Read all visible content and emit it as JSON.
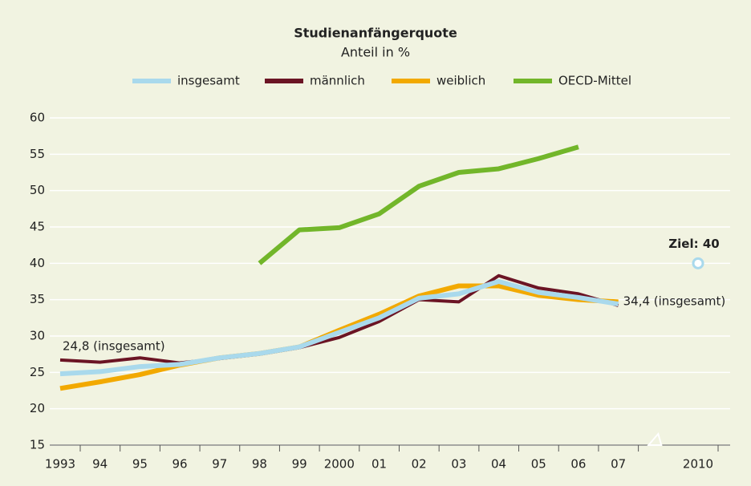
{
  "chart_data": {
    "type": "line",
    "title": "Studienanfängerquote",
    "subtitle": "Anteil in %",
    "categories": [
      "1993",
      "94",
      "95",
      "96",
      "97",
      "98",
      "99",
      "2000",
      "01",
      "02",
      "03",
      "04",
      "05",
      "06",
      "07",
      null,
      "2010"
    ],
    "series": [
      {
        "name": "insgesamt",
        "color": "#a9d9ec",
        "values": [
          24.8,
          25.1,
          25.8,
          26.1,
          27.0,
          27.6,
          28.5,
          30.5,
          32.5,
          35.2,
          35.8,
          37.5,
          36.0,
          35.3,
          34.4,
          null,
          null
        ]
      },
      {
        "name": "männlich",
        "color": "#6b1424",
        "values": [
          26.7,
          26.4,
          27.0,
          26.3,
          26.9,
          27.5,
          28.4,
          29.8,
          32.0,
          35.0,
          34.7,
          38.3,
          36.6,
          35.8,
          34.2,
          null,
          null
        ]
      },
      {
        "name": "weiblich",
        "color": "#f2a900",
        "values": [
          22.8,
          23.7,
          24.7,
          26.0,
          27.0,
          27.6,
          28.5,
          30.8,
          33.0,
          35.5,
          36.9,
          36.9,
          35.6,
          35.0,
          34.7,
          null,
          null
        ]
      },
      {
        "name": "OECD-Mittel",
        "color": "#72b62a",
        "values": [
          null,
          null,
          null,
          null,
          null,
          40,
          44.6,
          44.9,
          46.8,
          50.6,
          52.5,
          53.0,
          54.4,
          56.0,
          null,
          null,
          null
        ]
      }
    ],
    "target": {
      "label": "Ziel: 40",
      "value": 40,
      "color": "#a9d9ec"
    },
    "annotations": [
      "24,8 (insgesamt)",
      "34,4 (insgesamt)"
    ],
    "ylim": [
      15,
      60
    ],
    "yticks": [
      15,
      20,
      25,
      30,
      35,
      40,
      45,
      50,
      55,
      60
    ],
    "grid": true
  }
}
